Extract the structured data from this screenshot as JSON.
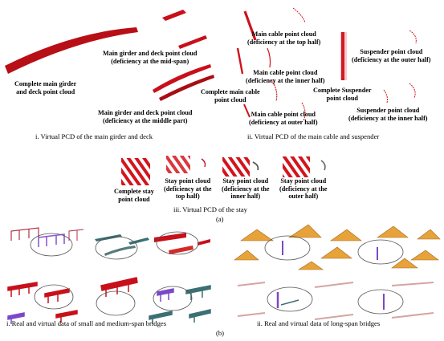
{
  "panel_a": {
    "sub_i": {
      "caption": "i. Virtual PCD of the main girder and deck",
      "labels": {
        "complete": [
          "Complete main girder",
          "and deck point cloud"
        ],
        "midspan": [
          "Main girder and deck point cloud",
          "(deficiency at the mid-span)"
        ],
        "middle_part": [
          "Main girder and deck point cloud",
          "(deficiency at the middle part)"
        ]
      }
    },
    "sub_ii": {
      "caption": "ii. Virtual PCD of the main cable and suspender",
      "labels": {
        "mc_top": [
          "Main cable point cloud",
          "(deficiency at the top half)"
        ],
        "mc_inner": [
          "Main cable point cloud",
          "(deficiency at the inner half)"
        ],
        "mc_complete": [
          "Complete main cable",
          "point cloud"
        ],
        "mc_outer": [
          "Main cable point cloud",
          "(deficiency at outer half)"
        ],
        "sus_outer": [
          "Suspender point cloud",
          "(deficiency at the outer half)"
        ],
        "sus_complete": [
          "Complete Suspender",
          "point cloud"
        ],
        "sus_inner": [
          "Suspender point cloud",
          "(deficiency at the inner half)"
        ]
      }
    },
    "sub_iii": {
      "caption": "iii. Virtual PCD of the stay",
      "labels": {
        "complete": [
          "Complete stay",
          "point cloud"
        ],
        "top": [
          "Stay point cloud",
          "(deficiency at the",
          "top half)"
        ],
        "inner": [
          "Stay point cloud",
          "(deficiency at the",
          "inner half)"
        ],
        "outer": [
          "Stay point cloud",
          "(deficiency at the",
          "outer half)"
        ]
      }
    },
    "tag": "(a)"
  },
  "panel_b": {
    "captions": {
      "left": "i. Real and virtual data of small and medium-span bridges",
      "right": "ii. Real and virtual data of long-span bridges"
    },
    "tag": "(b)"
  },
  "colors": {
    "point_cloud_red": "#c8101a",
    "dark_red": "#8e0a10",
    "teal": "#3b6f74",
    "purple": "#7b48c8",
    "orange": "#e8a23a",
    "pink_cable": "#d7a3a3"
  }
}
